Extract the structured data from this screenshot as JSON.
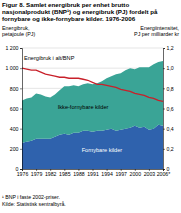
{
  "chart_data": {
    "type": "area",
    "title": "Figur 8. Samlet energibruk per enhet brutto nasjonalprodukt (BNP¹) og energibruk (PJ) fordelt på fornybare og ikke-fornybare kilder. 1976-2006",
    "ylabel": "Energibruk, petajoule (PJ)",
    "y2label": "Energiintensitet, PJ per milliarder kr",
    "notes": [
      "¹ BNP i faste 2002-priser.",
      "Kilde: Statistisk sentralbyrå."
    ],
    "stacked": true,
    "grid": true,
    "x": [
      1976,
      1977,
      1978,
      1979,
      1980,
      1981,
      1982,
      1983,
      1984,
      1985,
      1986,
      1987,
      1988,
      1989,
      1990,
      1991,
      1992,
      1993,
      1994,
      1995,
      1996,
      1997,
      1998,
      1999,
      2000,
      2001,
      2002,
      2003,
      2004,
      2005,
      2006
    ],
    "xlim": [
      1976,
      2006
    ],
    "xticks": [
      1976,
      1979,
      1982,
      1985,
      1988,
      1991,
      1994,
      1997,
      2000,
      2003,
      {
        "value": 2006,
        "label": "2006*"
      }
    ],
    "ylim": [
      0,
      1200
    ],
    "yticks": [
      0,
      200,
      400,
      600,
      800,
      {
        "value": 1000,
        "label": "1 000"
      },
      {
        "value": 1200,
        "label": "1 200"
      }
    ],
    "y2lim": [
      0,
      1.2
    ],
    "y2ticks": [
      0,
      {
        "value": 0.2,
        "label": "0,2"
      },
      {
        "value": 0.4,
        "label": "0,4"
      },
      {
        "value": 0.6,
        "label": "0,6"
      },
      {
        "value": 0.8,
        "label": "0,8"
      },
      {
        "value": 1.0,
        "label": "1,0"
      },
      {
        "value": 1.2,
        "label": "1,2"
      }
    ],
    "series": [
      {
        "name": "Fornybare kilder",
        "type": "area",
        "color": "#2f62ad",
        "values": [
          260,
          270,
          280,
          300,
          300,
          300,
          300,
          320,
          340,
          350,
          340,
          360,
          360,
          380,
          380,
          370,
          380,
          380,
          390,
          400,
          380,
          390,
          400,
          410,
          430,
          410,
          420,
          390,
          400,
          440,
          430
        ]
      },
      {
        "name": "Ikke-fornybare kilder",
        "type": "area",
        "color": "#3aa496",
        "values": [
          420,
          430,
          430,
          450,
          440,
          420,
          410,
          420,
          440,
          470,
          480,
          470,
          460,
          460,
          470,
          470,
          470,
          490,
          510,
          520,
          560,
          560,
          580,
          590,
          560,
          600,
          590,
          620,
          640,
          620,
          640
        ]
      },
      {
        "name": "Energibruk i alt/BNP",
        "type": "line",
        "axis": "y2",
        "color": "#c8202a",
        "values": [
          1.0,
          0.99,
          0.98,
          0.98,
          0.96,
          0.94,
          0.93,
          0.92,
          0.91,
          0.91,
          0.9,
          0.9,
          0.9,
          0.89,
          0.88,
          0.86,
          0.84,
          0.84,
          0.83,
          0.82,
          0.81,
          0.79,
          0.78,
          0.77,
          0.75,
          0.74,
          0.73,
          0.71,
          0.7,
          0.68,
          0.67
        ]
      }
    ]
  }
}
